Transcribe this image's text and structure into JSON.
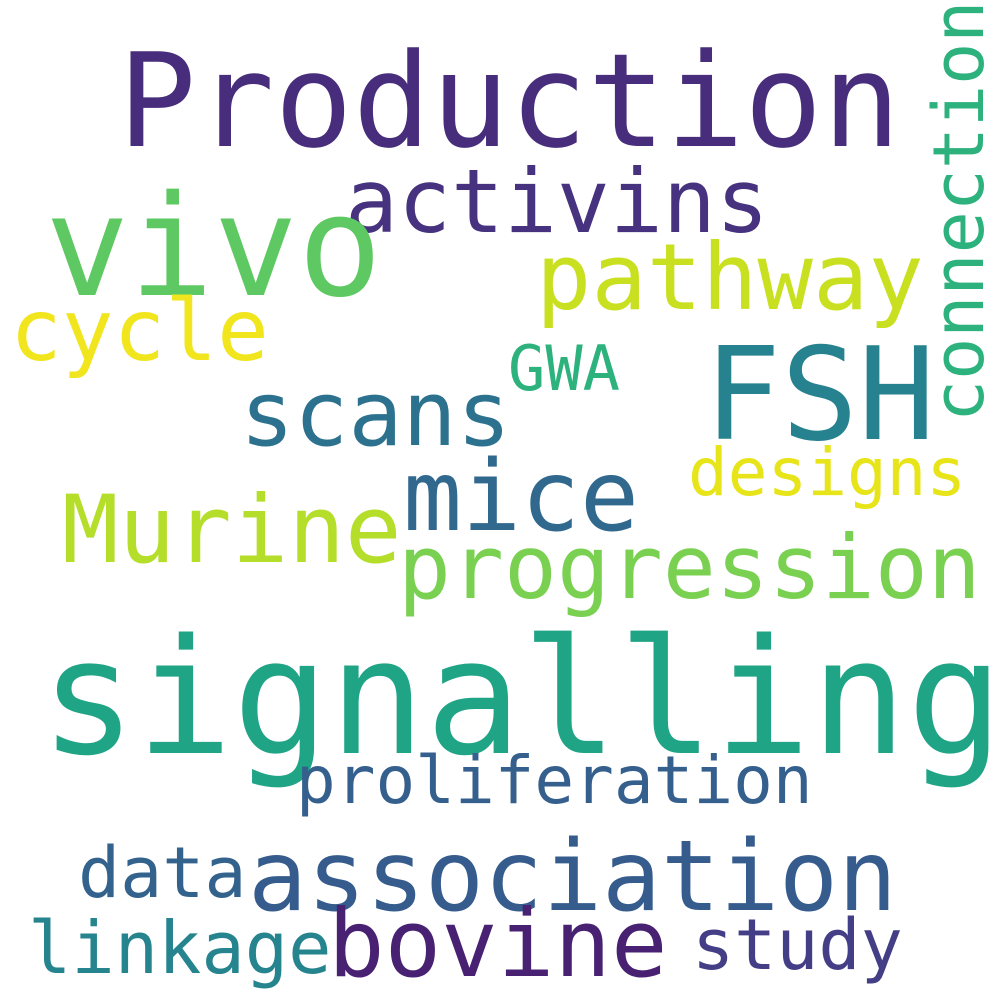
{
  "words": [
    {
      "id": "production",
      "text": "Production",
      "color": "#472d7b"
    },
    {
      "id": "activins",
      "text": "activins",
      "color": "#46327e"
    },
    {
      "id": "vivo",
      "text": "vivo",
      "color": "#5ec962"
    },
    {
      "id": "connection",
      "text": "connection",
      "color": "#2db27d"
    },
    {
      "id": "pathway",
      "text": "pathway",
      "color": "#c8e020"
    },
    {
      "id": "cycle",
      "text": "cycle",
      "color": "#f1e51d"
    },
    {
      "id": "fsh",
      "text": "FSH",
      "color": "#26828e"
    },
    {
      "id": "gwa",
      "text": "GWA",
      "color": "#2db27d"
    },
    {
      "id": "scans",
      "text": "scans",
      "color": "#2c728e"
    },
    {
      "id": "mice",
      "text": "mice",
      "color": "#31688e"
    },
    {
      "id": "designs",
      "text": "designs",
      "color": "#e7e419"
    },
    {
      "id": "murine",
      "text": "Murine",
      "color": "#b5de2b"
    },
    {
      "id": "progression",
      "text": "progression",
      "color": "#7ad151"
    },
    {
      "id": "signalling",
      "text": "signalling",
      "color": "#20a486"
    },
    {
      "id": "proliferation",
      "text": "proliferation",
      "color": "#355f8d"
    },
    {
      "id": "data",
      "text": "data",
      "color": "#33638d"
    },
    {
      "id": "association",
      "text": "association",
      "color": "#365c8d"
    },
    {
      "id": "linkage",
      "text": "linkage",
      "color": "#25848e"
    },
    {
      "id": "bovine",
      "text": "bovine",
      "color": "#482173"
    },
    {
      "id": "study",
      "text": "study",
      "color": "#433e85"
    }
  ]
}
